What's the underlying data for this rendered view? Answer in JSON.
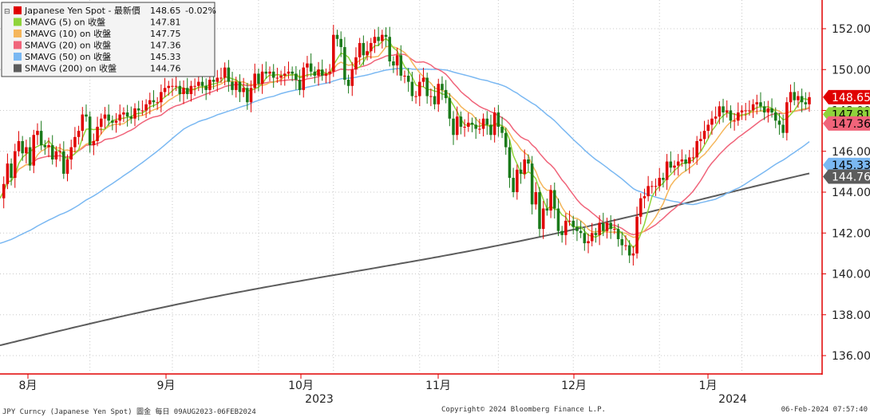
{
  "chart_data": {
    "type": "candlestick",
    "title": "",
    "y_ticks": [
      "136.00",
      "138.00",
      "140.00",
      "142.00",
      "144.00",
      "146.00",
      "148.00",
      "150.00",
      "152.00"
    ],
    "ylim": [
      135,
      153
    ],
    "x_month_labels": [
      "8月",
      "9月",
      "10月",
      "11月",
      "12月",
      "1月"
    ],
    "x_year_labels": [
      "2023",
      "2024"
    ],
    "grid": true,
    "legend": {
      "position": "top-left",
      "entries": [
        {
          "label": "Japanese Yen Spot - 最新價",
          "value": "148.65",
          "change": "-0.02%",
          "color": "#e00000"
        },
        {
          "label": "SMAVG (5)  on 收盤",
          "value": "147.81",
          "color": "#8fd43a"
        },
        {
          "label": "SMAVG (10)  on 收盤",
          "value": "147.75",
          "color": "#f5b65b"
        },
        {
          "label": "SMAVG (20)  on 收盤",
          "value": "147.36",
          "color": "#f0647a"
        },
        {
          "label": "SMAVG (50)  on 收盤",
          "value": "145.33",
          "color": "#7ab8f2"
        },
        {
          "label": "SMAVG (200)  on 收盤",
          "value": "144.76",
          "color": "#5c5c5c"
        }
      ]
    },
    "last_value_tags": [
      {
        "value": "148.65",
        "bg": "#e00000",
        "fg": "#ffffff"
      },
      {
        "value": "147.81",
        "bg": "#8fd43a",
        "fg": "#000000"
      },
      {
        "value": "147.36",
        "bg": "#f0647a",
        "fg": "#000000"
      },
      {
        "value": "145.33",
        "bg": "#7ab8f2",
        "fg": "#000000"
      },
      {
        "value": "144.76",
        "bg": "#5c5c5c",
        "fg": "#ffffff"
      }
    ],
    "close_series": [
      143.7,
      144.4,
      145.4,
      144.7,
      146.0,
      146.5,
      145.9,
      146.2,
      145.3,
      146.8,
      147.0,
      146.3,
      146.2,
      146.3,
      145.6,
      146.0,
      146.0,
      144.9,
      145.6,
      146.2,
      146.7,
      147.0,
      147.8,
      147.7,
      146.3,
      146.5,
      147.2,
      147.6,
      147.8,
      147.5,
      147.4,
      147.5,
      147.8,
      147.9,
      147.7,
      147.6,
      148.1,
      148.0,
      148.0,
      148.3,
      148.5,
      148.4,
      148.4,
      148.9,
      149.1,
      149.2,
      149.2,
      149.2,
      148.8,
      149.1,
      148.8,
      149.2,
      149.2,
      149.4,
      149.2,
      149.0,
      149.5,
      149.4,
      149.6,
      149.6,
      150.1,
      149.4,
      149.0,
      149.4,
      148.9,
      149.1,
      148.4,
      149.1,
      149.8,
      149.3,
      149.9,
      149.8,
      149.9,
      149.6,
      149.6,
      149.7,
      149.8,
      149.9,
      149.8,
      149.5,
      149.0,
      150.1,
      150.3,
      149.9,
      149.7,
      150.0,
      149.7,
      149.8,
      149.9,
      151.7,
      151.5,
      151.1,
      149.5,
      149.2,
      150.0,
      150.6,
      151.3,
      150.7,
      150.9,
      151.3,
      151.6,
      151.4,
      151.7,
      151.6,
      150.4,
      150.2,
      150.7,
      149.7,
      149.7,
      149.4,
      148.7,
      148.7,
      149.4,
      149.6,
      148.7,
      148.7,
      148.3,
      149.3,
      149.0,
      148.6,
      147.6,
      146.8,
      147.7,
      147.2,
      147.2,
      147.4,
      147.3,
      147.1,
      147.1,
      147.6,
      147.3,
      146.8,
      147.9,
      147.2,
      146.9,
      146.2,
      144.7,
      144.0,
      145.1,
      144.9,
      145.6,
      145.4,
      143.4,
      144.0,
      142.2,
      143.2,
      143.1,
      144.1,
      143.2,
      142.1,
      141.9,
      142.6,
      142.6,
      142.3,
      142.1,
      142.0,
      141.5,
      141.6,
      142.0,
      141.9,
      142.5,
      142.1,
      142.5,
      142.2,
      142.2,
      141.7,
      141.4,
      141.4,
      140.9,
      141.0,
      142.8,
      143.7,
      143.8,
      144.3,
      144.3,
      144.3,
      144.7,
      144.6,
      145.5,
      145.2,
      145.3,
      145.5,
      145.6,
      145.4,
      145.7,
      145.7,
      146.5,
      146.6,
      147.0,
      147.3,
      147.6,
      147.7,
      148.2,
      147.9,
      148.0,
      147.5,
      147.5,
      147.9,
      148.0,
      148.0,
      148.0,
      148.3,
      148.4,
      148.2,
      147.9,
      148.1,
      147.9,
      147.5,
      147.3,
      146.9,
      148.4,
      148.9,
      148.5,
      148.7,
      148.4,
      148.3,
      148.65
    ]
  },
  "footer": {
    "left": "JPY Curncy (Japanese Yen Spot) 圖金  每日 09AUG2023-06FEB2024",
    "center": "Copyright© 2024 Bloomberg Finance L.P.",
    "right": "06-Feb-2024 07:57:40"
  }
}
